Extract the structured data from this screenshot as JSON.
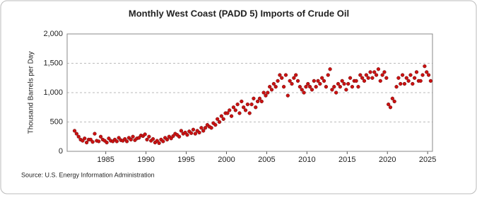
{
  "chart_data": {
    "type": "scatter",
    "title": "Monthly West Coast (PADD 5) Imports of Crude Oil",
    "y_label": "Thousand Barrels per Day",
    "source": "Source: U.S. Energy Information Administration",
    "color": "#cc1111",
    "xlim": [
      1980.2,
      2025.6
    ],
    "xticks": [
      1985,
      1990,
      1995,
      2000,
      2005,
      2010,
      2015,
      2020,
      2025
    ],
    "ylim": [
      0,
      2000
    ],
    "yticks": [
      0,
      500,
      {
        "value": 1000,
        "label": "1,000"
      },
      {
        "value": 1500,
        "label": "1,500"
      },
      {
        "value": 2000,
        "label": "2,000"
      }
    ],
    "grid": true,
    "x": [
      1981.125,
      1981.375,
      1981.625,
      1981.875,
      1982.125,
      1982.375,
      1982.625,
      1982.875,
      1983.125,
      1983.375,
      1983.625,
      1983.875,
      1984.125,
      1984.375,
      1984.625,
      1984.875,
      1985.125,
      1985.375,
      1985.625,
      1985.875,
      1986.125,
      1986.375,
      1986.625,
      1986.875,
      1987.125,
      1987.375,
      1987.625,
      1987.875,
      1988.125,
      1988.375,
      1988.625,
      1988.875,
      1989.125,
      1989.375,
      1989.625,
      1989.875,
      1990.125,
      1990.375,
      1990.625,
      1990.875,
      1991.125,
      1991.375,
      1991.625,
      1991.875,
      1992.125,
      1992.375,
      1992.625,
      1992.875,
      1993.125,
      1993.375,
      1993.625,
      1993.875,
      1994.125,
      1994.375,
      1994.625,
      1994.875,
      1995.125,
      1995.375,
      1995.625,
      1995.875,
      1996.125,
      1996.375,
      1996.625,
      1996.875,
      1997.125,
      1997.375,
      1997.625,
      1997.875,
      1998.125,
      1998.375,
      1998.625,
      1998.875,
      1999.125,
      1999.375,
      1999.625,
      1999.875,
      2000.125,
      2000.375,
      2000.625,
      2000.875,
      2001.125,
      2001.375,
      2001.625,
      2001.875,
      2002.125,
      2002.375,
      2002.625,
      2002.875,
      2003.125,
      2003.375,
      2003.625,
      2003.875,
      2004.125,
      2004.375,
      2004.625,
      2004.875,
      2005.125,
      2005.375,
      2005.625,
      2005.875,
      2006.125,
      2006.375,
      2006.625,
      2006.875,
      2007.125,
      2007.375,
      2007.625,
      2007.875,
      2008.125,
      2008.375,
      2008.625,
      2008.875,
      2009.125,
      2009.375,
      2009.625,
      2009.875,
      2010.125,
      2010.375,
      2010.625,
      2010.875,
      2011.125,
      2011.375,
      2011.625,
      2011.875,
      2012.125,
      2012.375,
      2012.625,
      2012.875,
      2013.125,
      2013.375,
      2013.625,
      2013.875,
      2014.125,
      2014.375,
      2014.625,
      2014.875,
      2015.125,
      2015.375,
      2015.625,
      2015.875,
      2016.125,
      2016.375,
      2016.625,
      2016.875,
      2017.125,
      2017.375,
      2017.625,
      2017.875,
      2018.125,
      2018.375,
      2018.625,
      2018.875,
      2019.125,
      2019.375,
      2019.625,
      2019.875,
      2020.125,
      2020.375,
      2020.625,
      2020.875,
      2021.125,
      2021.375,
      2021.625,
      2021.875,
      2022.125,
      2022.375,
      2022.625,
      2022.875,
      2023.125,
      2023.375,
      2023.625,
      2023.875,
      2024.125,
      2024.375,
      2024.625,
      2024.875,
      2025.125,
      2025.375
    ],
    "values": [
      350,
      300,
      250,
      200,
      180,
      220,
      150,
      200,
      200,
      160,
      300,
      180,
      170,
      250,
      200,
      180,
      150,
      220,
      180,
      170,
      200,
      170,
      230,
      190,
      180,
      210,
      170,
      230,
      200,
      250,
      190,
      220,
      230,
      270,
      260,
      290,
      200,
      250,
      180,
      210,
      150,
      180,
      140,
      200,
      170,
      230,
      200,
      250,
      220,
      260,
      300,
      280,
      250,
      350,
      300,
      320,
      280,
      340,
      310,
      370,
      300,
      350,
      320,
      400,
      350,
      400,
      450,
      420,
      400,
      480,
      450,
      550,
      500,
      600,
      550,
      650,
      650,
      700,
      600,
      750,
      700,
      800,
      650,
      850,
      750,
      700,
      800,
      650,
      800,
      900,
      750,
      850,
      900,
      850,
      1000,
      950,
      1000,
      1100,
      1050,
      1150,
      1100,
      1200,
      1300,
      1250,
      1100,
      1300,
      950,
      1200,
      1150,
      1250,
      1300,
      1200,
      1100,
      1050,
      1000,
      1100,
      1150,
      1100,
      1050,
      1200,
      1100,
      1200,
      1150,
      1250,
      1200,
      1100,
      1300,
      1400,
      1050,
      1100,
      1000,
      1150,
      1100,
      1200,
      1150,
      1050,
      1150,
      1250,
      1100,
      1200,
      1200,
      1100,
      1300,
      1250,
      1200,
      1300,
      1250,
      1350,
      1250,
      1350,
      1300,
      1400,
      1200,
      1300,
      1350,
      1250,
      800,
      750,
      900,
      850,
      1100,
      1250,
      1150,
      1300,
      1150,
      1250,
      1200,
      1300,
      1150,
      1250,
      1350,
      1200,
      1200,
      1300,
      1450,
      1350,
      1300,
      1200
    ]
  }
}
